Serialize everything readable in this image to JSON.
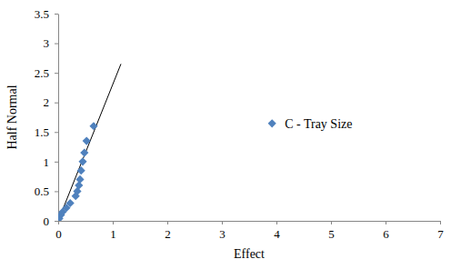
{
  "chart_data": {
    "type": "scatter",
    "x_label": "Effect",
    "y_label": "Half Normal",
    "xlim": [
      0,
      7
    ],
    "ylim": [
      0,
      3.5
    ],
    "xticks": [
      0,
      1,
      2,
      3,
      4,
      5,
      6,
      7
    ],
    "yticks": [
      0,
      0.5,
      1,
      1.5,
      2,
      2.5,
      3,
      3.5
    ],
    "grid": false,
    "legend": "right",
    "series": [
      {
        "name": "C - Tray Size",
        "color": "#4f81bd",
        "marker": "diamond",
        "type": "scatter",
        "x": [
          0.02,
          0.05,
          0.08,
          0.15,
          0.22,
          0.32,
          0.35,
          0.38,
          0.4,
          0.42,
          0.45,
          0.48,
          0.52,
          0.65
        ],
        "values": [
          0.04,
          0.1,
          0.15,
          0.22,
          0.3,
          0.42,
          0.5,
          0.6,
          0.7,
          0.85,
          1.0,
          1.15,
          1.35,
          1.6
        ]
      },
      {
        "type": "line",
        "color": "#000000",
        "line_style": "solid",
        "x": [
          0,
          1.15
        ],
        "values": [
          0,
          2.65
        ]
      }
    ]
  }
}
